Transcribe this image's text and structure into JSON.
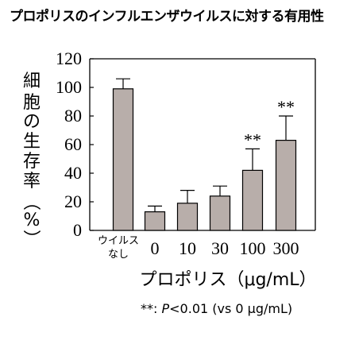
{
  "chart_data": {
    "type": "bar",
    "title": "プロポリスのインフルエンザウイルスに対する有用性",
    "ylabel": "細胞の生存率（%）",
    "xlabel": "プロポリス（μg/mL）",
    "categories": [
      "ウイルス\nなし",
      "0",
      "10",
      "30",
      "100",
      "300"
    ],
    "values": [
      99,
      13,
      19,
      24,
      42,
      63
    ],
    "error": [
      7,
      4,
      9,
      7,
      15,
      17
    ],
    "significance": [
      "",
      "",
      "",
      "",
      "**",
      "**"
    ],
    "ylim": [
      0,
      120
    ],
    "yticks": [
      0,
      20,
      40,
      60,
      80,
      100,
      120
    ],
    "grid": false,
    "bar_color": "#b8aeaa",
    "note": {
      "stars": "**:",
      "p": "P",
      "rest": "<0.01 (vs  0 μg/mL)"
    }
  }
}
